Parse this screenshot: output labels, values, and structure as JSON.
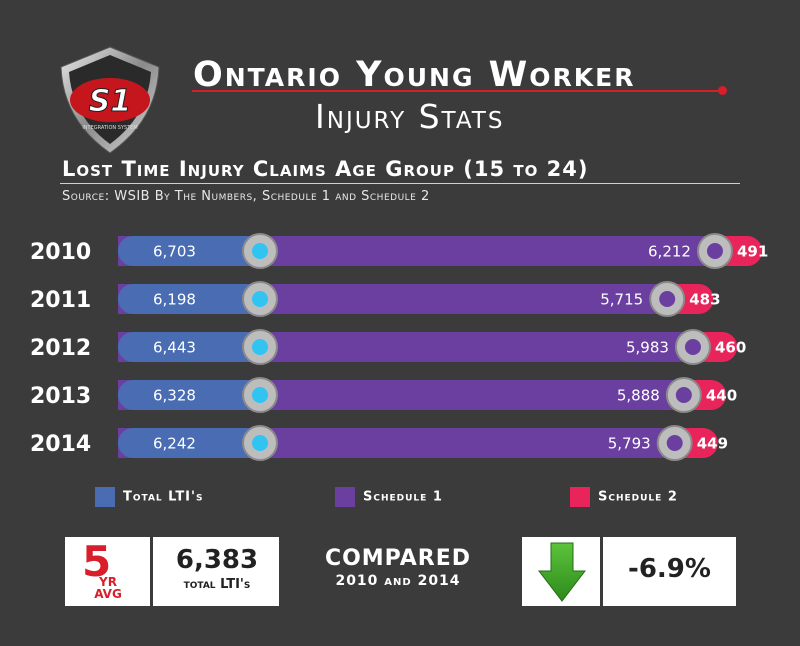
{
  "logo": {
    "mark": "S1",
    "subtext": "INTEGRATION SYSTEM"
  },
  "header": {
    "title_line1": "Ontario Young Worker",
    "title_line2": "Injury Stats",
    "subtitle": "Lost Time Injury Claims Age Group (15 to 24)",
    "source": "Source: WSIB  By The Numbers, Schedule 1 and Schedule 2"
  },
  "colors": {
    "total": "#4a6cb3",
    "schedule1": "#6b3fa0",
    "schedule2": "#e8245a",
    "accent_red": "#d81e2a",
    "arrow": "#3da827"
  },
  "chart_data": {
    "type": "bar",
    "categories": [
      "2010",
      "2011",
      "2012",
      "2013",
      "2014"
    ],
    "series": [
      {
        "name": "Total LTI's",
        "values": [
          6703,
          6198,
          6443,
          6328,
          6242
        ],
        "labels": [
          "6,703",
          "6,198",
          "6,443",
          "6,328",
          "6,242"
        ]
      },
      {
        "name": "Schedule 1",
        "values": [
          6212,
          5715,
          5983,
          5888,
          5793
        ],
        "labels": [
          "6,212",
          "5,715",
          "5,983",
          "5,888",
          "5,793"
        ]
      },
      {
        "name": "Schedule 2",
        "values": [
          491,
          483,
          460,
          440,
          449
        ],
        "labels": [
          "491",
          "483",
          "460",
          "440",
          "449"
        ]
      }
    ],
    "stacking": "Total = Schedule 1 + Schedule 2"
  },
  "legend": {
    "total": "Total LTI's",
    "schedule1": "Schedule 1",
    "schedule2": "Schedule 2"
  },
  "summary": {
    "avg_number": "5",
    "avg_caption_line1": "YR",
    "avg_caption_line2": "AVG",
    "avg_value": "6,383",
    "avg_label": "total LTI's",
    "compared_line1": "COMPARED",
    "compared_line2": "2010 and 2014",
    "change_value": "-6.9%",
    "change_icon": "down-arrow-icon"
  }
}
